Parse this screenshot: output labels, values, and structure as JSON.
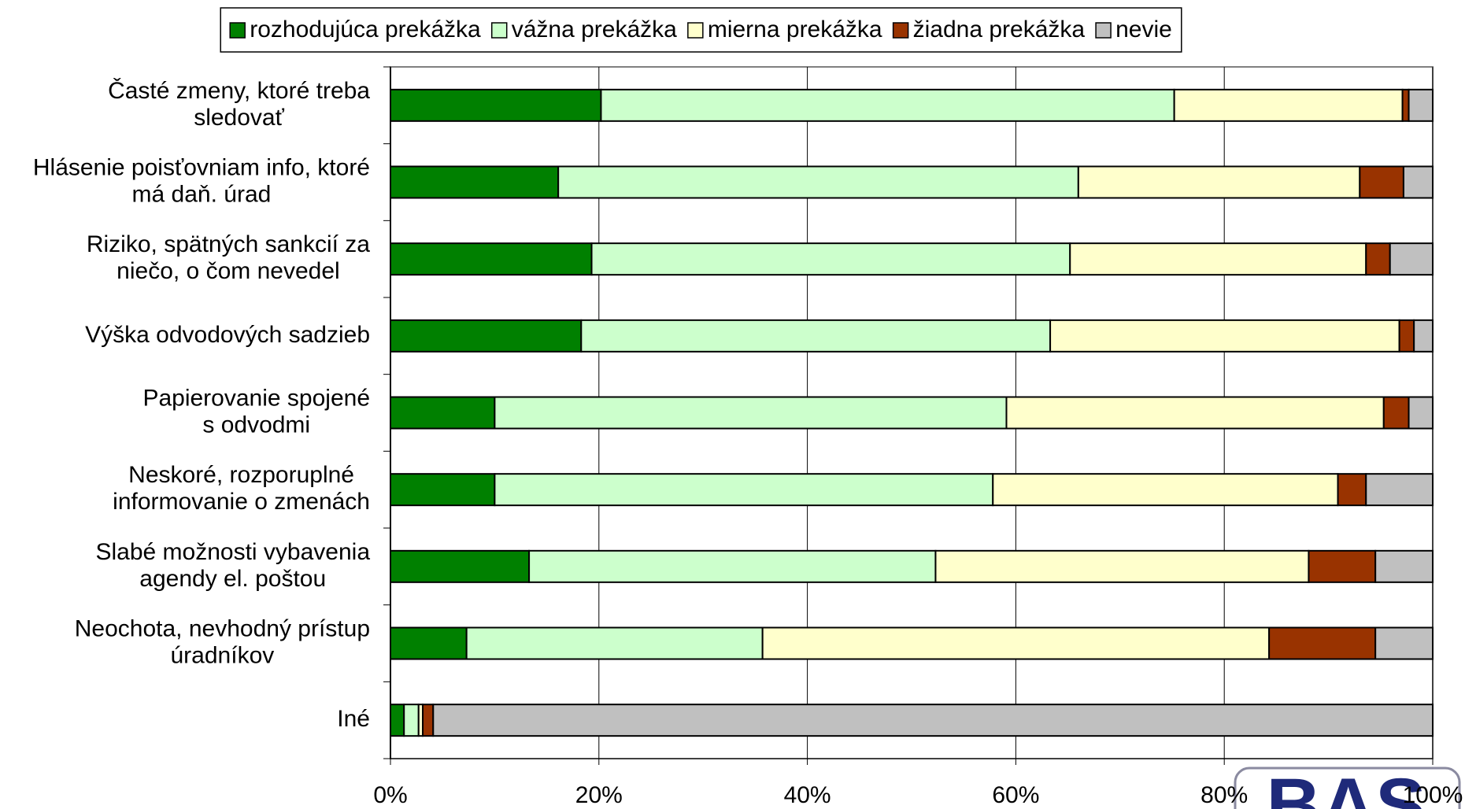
{
  "chart_data": {
    "type": "stacked-bar-horizontal",
    "categories": [
      [
        "Časté zmeny, ktoré treba",
        "sledovať"
      ],
      [
        "Hlásenie poisťovniam info, ktoré",
        "má daň. úrad"
      ],
      [
        "Riziko, spätných sankcií za",
        "niečo, o čom nevedel"
      ],
      [
        "Výška odvodových sadzieb"
      ],
      [
        "Papierovanie spojené",
        "s odvodmi"
      ],
      [
        "Neskoré, rozporuplné",
        "informovanie o zmenách"
      ],
      [
        "Slabé možnosti vybavenia",
        "agendy el. poštou"
      ],
      [
        "Neochota, nevhodný prístup",
        "úradníkov"
      ],
      [
        "Iné"
      ]
    ],
    "series": [
      {
        "name": "rozhodujúca prekážka",
        "color": "#008000",
        "values": [
          20.2,
          16.1,
          19.3,
          18.3,
          10.0,
          10.0,
          13.3,
          7.3,
          1.3
        ]
      },
      {
        "name": "vážna prekážka",
        "color": "#ccffcc",
        "values": [
          55.0,
          49.9,
          45.9,
          45.0,
          49.1,
          47.8,
          39.0,
          28.4,
          1.4
        ]
      },
      {
        "name": "mierna prekážka",
        "color": "#ffffcc",
        "values": [
          21.9,
          27.0,
          28.4,
          33.5,
          36.2,
          33.1,
          35.8,
          48.6,
          0.4
        ]
      },
      {
        "name": "žiadna prekážka",
        "color": "#993300",
        "values": [
          0.6,
          4.2,
          2.3,
          1.4,
          2.4,
          2.7,
          6.4,
          10.2,
          1.0
        ]
      },
      {
        "name": "nevie",
        "color": "#c0c0c0",
        "values": [
          2.3,
          2.8,
          4.1,
          1.8,
          2.3,
          6.4,
          5.5,
          5.5,
          95.9
        ]
      }
    ],
    "xlim": [
      0,
      100
    ],
    "xticks": [
      {
        "value": 0,
        "label": "0%"
      },
      {
        "value": 20,
        "label": "20%"
      },
      {
        "value": 40,
        "label": "40%"
      },
      {
        "value": 60,
        "label": "60%"
      },
      {
        "value": 80,
        "label": "80%"
      },
      {
        "value": 100,
        "label": "100%"
      }
    ],
    "grid": true,
    "legend": "top",
    "logo": "BAS"
  }
}
